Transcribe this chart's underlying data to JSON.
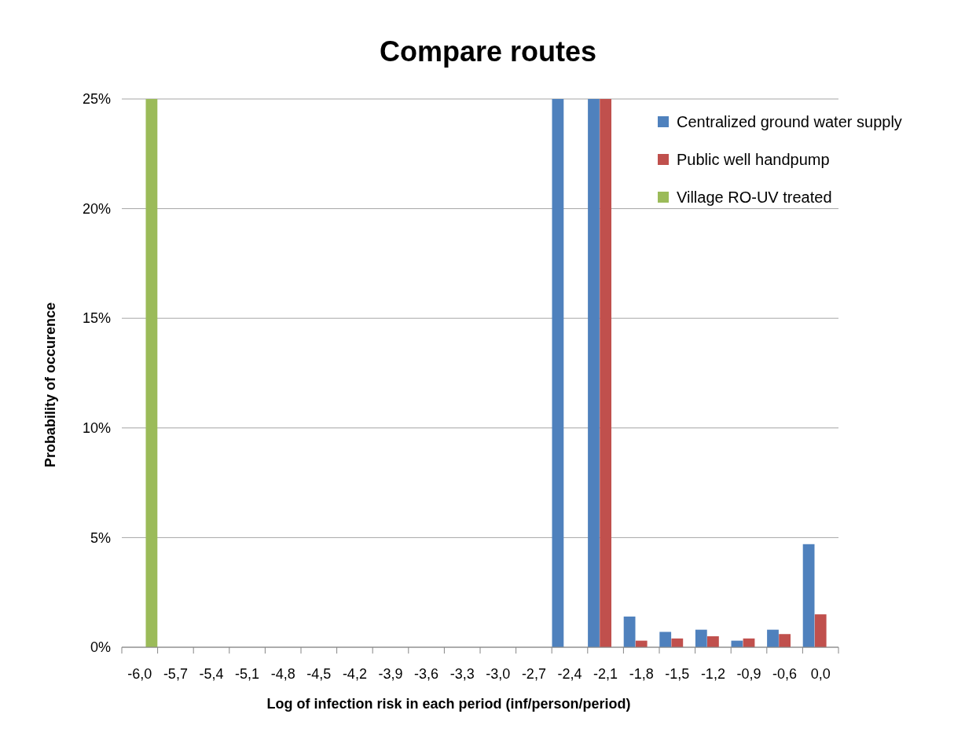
{
  "chart_data": {
    "type": "bar",
    "title": "Compare routes",
    "xlabel": "Log of infection risk in each period (inf/person/period)",
    "ylabel": "Probability of occurence",
    "categories": [
      "-6,0",
      "-5,7",
      "-5,4",
      "-5,1",
      "-4,8",
      "-4,5",
      "-4,2",
      "-3,9",
      "-3,6",
      "-3,3",
      "-3,0",
      "-2,7",
      "-2,4",
      "-2,1",
      "-1,8",
      "-1,5",
      "-1,2",
      "-0,9",
      "-0,6",
      "0,0"
    ],
    "series": [
      {
        "name": "Centralized ground water supply",
        "color": "#4f81bd",
        "values": [
          0,
          0,
          0,
          0,
          0,
          0,
          0,
          0,
          0,
          0,
          0,
          0,
          25,
          25,
          1.4,
          0.7,
          0.8,
          0.3,
          0.8,
          4.7
        ]
      },
      {
        "name": "Public well handpump",
        "color": "#c0504d",
        "values": [
          0,
          0,
          0,
          0,
          0,
          0,
          0,
          0,
          0,
          0,
          0,
          0,
          0,
          25,
          0.3,
          0.4,
          0.5,
          0.4,
          0.6,
          1.5
        ]
      },
      {
        "name": "Village RO-UV treated",
        "color": "#9bbb59",
        "values": [
          25,
          0,
          0,
          0,
          0,
          0,
          0,
          0,
          0,
          0,
          0,
          0,
          0,
          0,
          0,
          0,
          0,
          0,
          0,
          0
        ]
      }
    ],
    "ylim": [
      0,
      25
    ],
    "yticks": [
      {
        "value": 0,
        "label": "0%"
      },
      {
        "value": 5,
        "label": "5%"
      },
      {
        "value": 10,
        "label": "10%"
      },
      {
        "value": 15,
        "label": "15%"
      },
      {
        "value": 20,
        "label": "20%"
      },
      {
        "value": 25,
        "label": "25%"
      }
    ],
    "grid": "y",
    "legend": "top right"
  }
}
